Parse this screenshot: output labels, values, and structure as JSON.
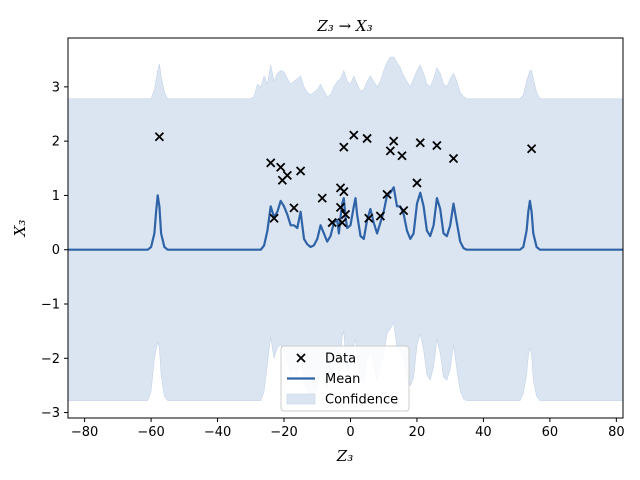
{
  "chart_data": {
    "type": "line",
    "title": "Z₃ → X₃",
    "xlabel": "Z₃",
    "ylabel": "X₃",
    "xlim": [
      -85,
      82
    ],
    "ylim": [
      -3.1,
      3.9
    ],
    "xticks": [
      -80,
      -60,
      -40,
      -20,
      0,
      20,
      40,
      60,
      80
    ],
    "xtick_labels": [
      "−80",
      "−60",
      "−40",
      "−20",
      "0",
      "20",
      "40",
      "60",
      "80"
    ],
    "yticks": [
      -3,
      -2,
      -1,
      0,
      1,
      2,
      3
    ],
    "ytick_labels": [
      "−3",
      "−2",
      "−1",
      "0",
      "1",
      "2",
      "3"
    ],
    "grid": false,
    "legend_position": "bottom-center",
    "legend": [
      {
        "label": "Data",
        "kind": "marker"
      },
      {
        "label": "Mean",
        "kind": "line"
      },
      {
        "label": "Confidence",
        "kind": "patch"
      }
    ],
    "colors": {
      "mean": "#2f63a7",
      "confidence": "#dbe5f2",
      "confidence_edge": "#c3d3ea",
      "data": "#000000"
    },
    "data_points": [
      [
        -57.5,
        2.08
      ],
      [
        -24,
        1.6
      ],
      [
        -23,
        0.58
      ],
      [
        -21,
        1.52
      ],
      [
        -20.5,
        1.28
      ],
      [
        -19,
        1.37
      ],
      [
        -17,
        0.77
      ],
      [
        -15,
        1.45
      ],
      [
        -8.5,
        0.95
      ],
      [
        -5.5,
        0.5
      ],
      [
        -3,
        1.14
      ],
      [
        -3,
        0.78
      ],
      [
        -2.5,
        0.5
      ],
      [
        -2,
        1.89
      ],
      [
        -2,
        1.07
      ],
      [
        -1.5,
        0.65
      ],
      [
        1,
        2.11
      ],
      [
        5,
        2.05
      ],
      [
        5.5,
        0.58
      ],
      [
        9,
        0.62
      ],
      [
        11,
        1.02
      ],
      [
        12,
        1.82
      ],
      [
        13,
        2.0
      ],
      [
        15.5,
        1.73
      ],
      [
        16,
        0.72
      ],
      [
        20,
        1.23
      ],
      [
        21,
        1.97
      ],
      [
        26,
        1.92
      ],
      [
        31,
        1.68
      ],
      [
        54.5,
        1.86
      ]
    ],
    "mean_points": [
      [
        -85,
        0
      ],
      [
        -61,
        0
      ],
      [
        -60,
        0.05
      ],
      [
        -59,
        0.3
      ],
      [
        -58.5,
        0.7
      ],
      [
        -58,
        1.0
      ],
      [
        -57.5,
        0.8
      ],
      [
        -57,
        0.3
      ],
      [
        -56,
        0.05
      ],
      [
        -55,
        0
      ],
      [
        -27,
        0
      ],
      [
        -26,
        0.08
      ],
      [
        -25,
        0.35
      ],
      [
        -24,
        0.8
      ],
      [
        -23,
        0.6
      ],
      [
        -22,
        0.7
      ],
      [
        -21,
        0.9
      ],
      [
        -20,
        0.8
      ],
      [
        -19,
        0.65
      ],
      [
        -18,
        0.45
      ],
      [
        -17,
        0.45
      ],
      [
        -16,
        0.4
      ],
      [
        -15,
        0.7
      ],
      [
        -14,
        0.2
      ],
      [
        -13,
        0.1
      ],
      [
        -12,
        0.05
      ],
      [
        -11,
        0.08
      ],
      [
        -10,
        0.2
      ],
      [
        -9,
        0.45
      ],
      [
        -8,
        0.3
      ],
      [
        -7,
        0.15
      ],
      [
        -6,
        0.25
      ],
      [
        -5,
        0.5
      ],
      [
        -4,
        0.55
      ],
      [
        -3.5,
        0.3
      ],
      [
        -3,
        0.6
      ],
      [
        -2.5,
        0.85
      ],
      [
        -2,
        0.95
      ],
      [
        -1.5,
        0.6
      ],
      [
        -1,
        0.4
      ],
      [
        0,
        0.45
      ],
      [
        1,
        0.8
      ],
      [
        1.5,
        0.95
      ],
      [
        2,
        0.65
      ],
      [
        3,
        0.25
      ],
      [
        4,
        0.2
      ],
      [
        5,
        0.55
      ],
      [
        6,
        0.75
      ],
      [
        7,
        0.5
      ],
      [
        8,
        0.3
      ],
      [
        9,
        0.5
      ],
      [
        10,
        0.7
      ],
      [
        11,
        1.0
      ],
      [
        12,
        1.05
      ],
      [
        13,
        1.15
      ],
      [
        14,
        0.8
      ],
      [
        15,
        0.8
      ],
      [
        16,
        0.65
      ],
      [
        17,
        0.35
      ],
      [
        18,
        0.2
      ],
      [
        19,
        0.3
      ],
      [
        20,
        0.85
      ],
      [
        21,
        1.05
      ],
      [
        22,
        0.8
      ],
      [
        23,
        0.35
      ],
      [
        24,
        0.25
      ],
      [
        25,
        0.45
      ],
      [
        26,
        0.95
      ],
      [
        27,
        0.75
      ],
      [
        28,
        0.3
      ],
      [
        29,
        0.25
      ],
      [
        30,
        0.45
      ],
      [
        31,
        0.85
      ],
      [
        32,
        0.5
      ],
      [
        33,
        0.15
      ],
      [
        34,
        0.03
      ],
      [
        35,
        0
      ],
      [
        51,
        0
      ],
      [
        52,
        0.05
      ],
      [
        53,
        0.35
      ],
      [
        53.5,
        0.7
      ],
      [
        54,
        0.9
      ],
      [
        54.5,
        0.7
      ],
      [
        55,
        0.3
      ],
      [
        56,
        0.05
      ],
      [
        57,
        0
      ],
      [
        82,
        0
      ]
    ],
    "confidence_upper": [
      [
        -85,
        2.78
      ],
      [
        -60,
        2.78
      ],
      [
        -59,
        2.95
      ],
      [
        -58,
        3.3
      ],
      [
        -57.5,
        3.42
      ],
      [
        -57,
        3.2
      ],
      [
        -56,
        2.9
      ],
      [
        -55,
        2.78
      ],
      [
        -30,
        2.78
      ],
      [
        -29,
        2.82
      ],
      [
        -28,
        3.05
      ],
      [
        -27,
        3.0
      ],
      [
        -26,
        3.2
      ],
      [
        -25,
        3.05
      ],
      [
        -24,
        3.4
      ],
      [
        -23,
        3.1
      ],
      [
        -22,
        3.25
      ],
      [
        -21,
        3.3
      ],
      [
        -20,
        3.28
      ],
      [
        -19,
        3.15
      ],
      [
        -18,
        3.05
      ],
      [
        -17,
        3.1
      ],
      [
        -16,
        3.15
      ],
      [
        -15,
        3.2
      ],
      [
        -14,
        3.0
      ],
      [
        -13,
        2.9
      ],
      [
        -12,
        2.85
      ],
      [
        -11,
        2.9
      ],
      [
        -10,
        2.95
      ],
      [
        -9,
        3.05
      ],
      [
        -8,
        2.92
      ],
      [
        -7,
        2.82
      ],
      [
        -6,
        2.85
      ],
      [
        -5,
        3.0
      ],
      [
        -4,
        3.1
      ],
      [
        -3,
        3.15
      ],
      [
        -2,
        3.3
      ],
      [
        -1,
        3.1
      ],
      [
        0,
        3.05
      ],
      [
        1,
        3.2
      ],
      [
        2,
        3.05
      ],
      [
        3,
        2.92
      ],
      [
        4,
        2.95
      ],
      [
        5,
        3.1
      ],
      [
        6,
        3.2
      ],
      [
        7,
        3.1
      ],
      [
        8,
        3.0
      ],
      [
        9,
        3.1
      ],
      [
        10,
        3.3
      ],
      [
        11,
        3.45
      ],
      [
        12,
        3.55
      ],
      [
        13,
        3.55
      ],
      [
        14,
        3.45
      ],
      [
        15,
        3.35
      ],
      [
        16,
        3.2
      ],
      [
        17,
        3.1
      ],
      [
        18,
        3.0
      ],
      [
        19,
        3.15
      ],
      [
        20,
        3.3
      ],
      [
        21,
        3.4
      ],
      [
        22,
        3.25
      ],
      [
        23,
        3.05
      ],
      [
        24,
        3.0
      ],
      [
        25,
        3.15
      ],
      [
        26,
        3.35
      ],
      [
        27,
        3.25
      ],
      [
        28,
        3.05
      ],
      [
        29,
        3.0
      ],
      [
        30,
        3.15
      ],
      [
        31,
        3.25
      ],
      [
        32,
        3.1
      ],
      [
        33,
        2.9
      ],
      [
        34,
        2.82
      ],
      [
        35,
        2.78
      ],
      [
        51,
        2.78
      ],
      [
        52,
        2.85
      ],
      [
        53,
        3.1
      ],
      [
        54,
        3.3
      ],
      [
        54.5,
        3.3
      ],
      [
        55,
        3.15
      ],
      [
        56,
        2.9
      ],
      [
        57,
        2.78
      ],
      [
        82,
        2.78
      ]
    ],
    "confidence_lower": [
      [
        -85,
        -2.78
      ],
      [
        -61,
        -2.78
      ],
      [
        -60,
        -2.6
      ],
      [
        -59,
        -2.0
      ],
      [
        -58,
        -1.7
      ],
      [
        -57.5,
        -1.8
      ],
      [
        -57,
        -2.3
      ],
      [
        -56,
        -2.7
      ],
      [
        -55,
        -2.78
      ],
      [
        -27,
        -2.78
      ],
      [
        -26,
        -2.6
      ],
      [
        -25,
        -2.1
      ],
      [
        -24,
        -1.6
      ],
      [
        -23,
        -2.0
      ],
      [
        -22,
        -1.8
      ],
      [
        -21,
        -1.75
      ],
      [
        -20,
        -1.9
      ],
      [
        -19,
        -2.1
      ],
      [
        -18,
        -2.3
      ],
      [
        -17,
        -2.2
      ],
      [
        -16,
        -2.3
      ],
      [
        -15,
        -1.85
      ],
      [
        -14,
        -2.5
      ],
      [
        -13,
        -2.6
      ],
      [
        -12,
        -2.7
      ],
      [
        -11,
        -2.65
      ],
      [
        -10,
        -2.55
      ],
      [
        -9,
        -2.25
      ],
      [
        -8,
        -2.4
      ],
      [
        -7,
        -2.55
      ],
      [
        -6,
        -2.4
      ],
      [
        -5,
        -2.1
      ],
      [
        -4,
        -2.05
      ],
      [
        -3.5,
        -2.4
      ],
      [
        -3,
        -1.95
      ],
      [
        -2.5,
        -1.6
      ],
      [
        -2,
        -1.5
      ],
      [
        -1.5,
        -1.95
      ],
      [
        -1,
        -2.2
      ],
      [
        0,
        -2.15
      ],
      [
        1,
        -1.75
      ],
      [
        1.5,
        -1.65
      ],
      [
        2,
        -1.95
      ],
      [
        3,
        -2.4
      ],
      [
        4,
        -2.45
      ],
      [
        5,
        -2.05
      ],
      [
        6,
        -1.85
      ],
      [
        7,
        -2.15
      ],
      [
        8,
        -2.4
      ],
      [
        9,
        -2.15
      ],
      [
        10,
        -1.9
      ],
      [
        11,
        -1.55
      ],
      [
        12,
        -1.45
      ],
      [
        13,
        -1.35
      ],
      [
        14,
        -1.8
      ],
      [
        15,
        -1.85
      ],
      [
        16,
        -2.05
      ],
      [
        17,
        -2.35
      ],
      [
        18,
        -2.5
      ],
      [
        19,
        -2.35
      ],
      [
        20,
        -1.75
      ],
      [
        21,
        -1.55
      ],
      [
        22,
        -1.85
      ],
      [
        23,
        -2.3
      ],
      [
        24,
        -2.4
      ],
      [
        25,
        -2.15
      ],
      [
        26,
        -1.65
      ],
      [
        27,
        -1.9
      ],
      [
        28,
        -2.35
      ],
      [
        29,
        -2.4
      ],
      [
        30,
        -2.2
      ],
      [
        31,
        -1.75
      ],
      [
        32,
        -2.2
      ],
      [
        33,
        -2.6
      ],
      [
        34,
        -2.75
      ],
      [
        35,
        -2.78
      ],
      [
        51,
        -2.78
      ],
      [
        52,
        -2.65
      ],
      [
        53,
        -2.3
      ],
      [
        53.5,
        -1.95
      ],
      [
        54,
        -1.8
      ],
      [
        54.5,
        -1.95
      ],
      [
        55,
        -2.4
      ],
      [
        56,
        -2.7
      ],
      [
        57,
        -2.78
      ],
      [
        82,
        -2.78
      ]
    ]
  }
}
